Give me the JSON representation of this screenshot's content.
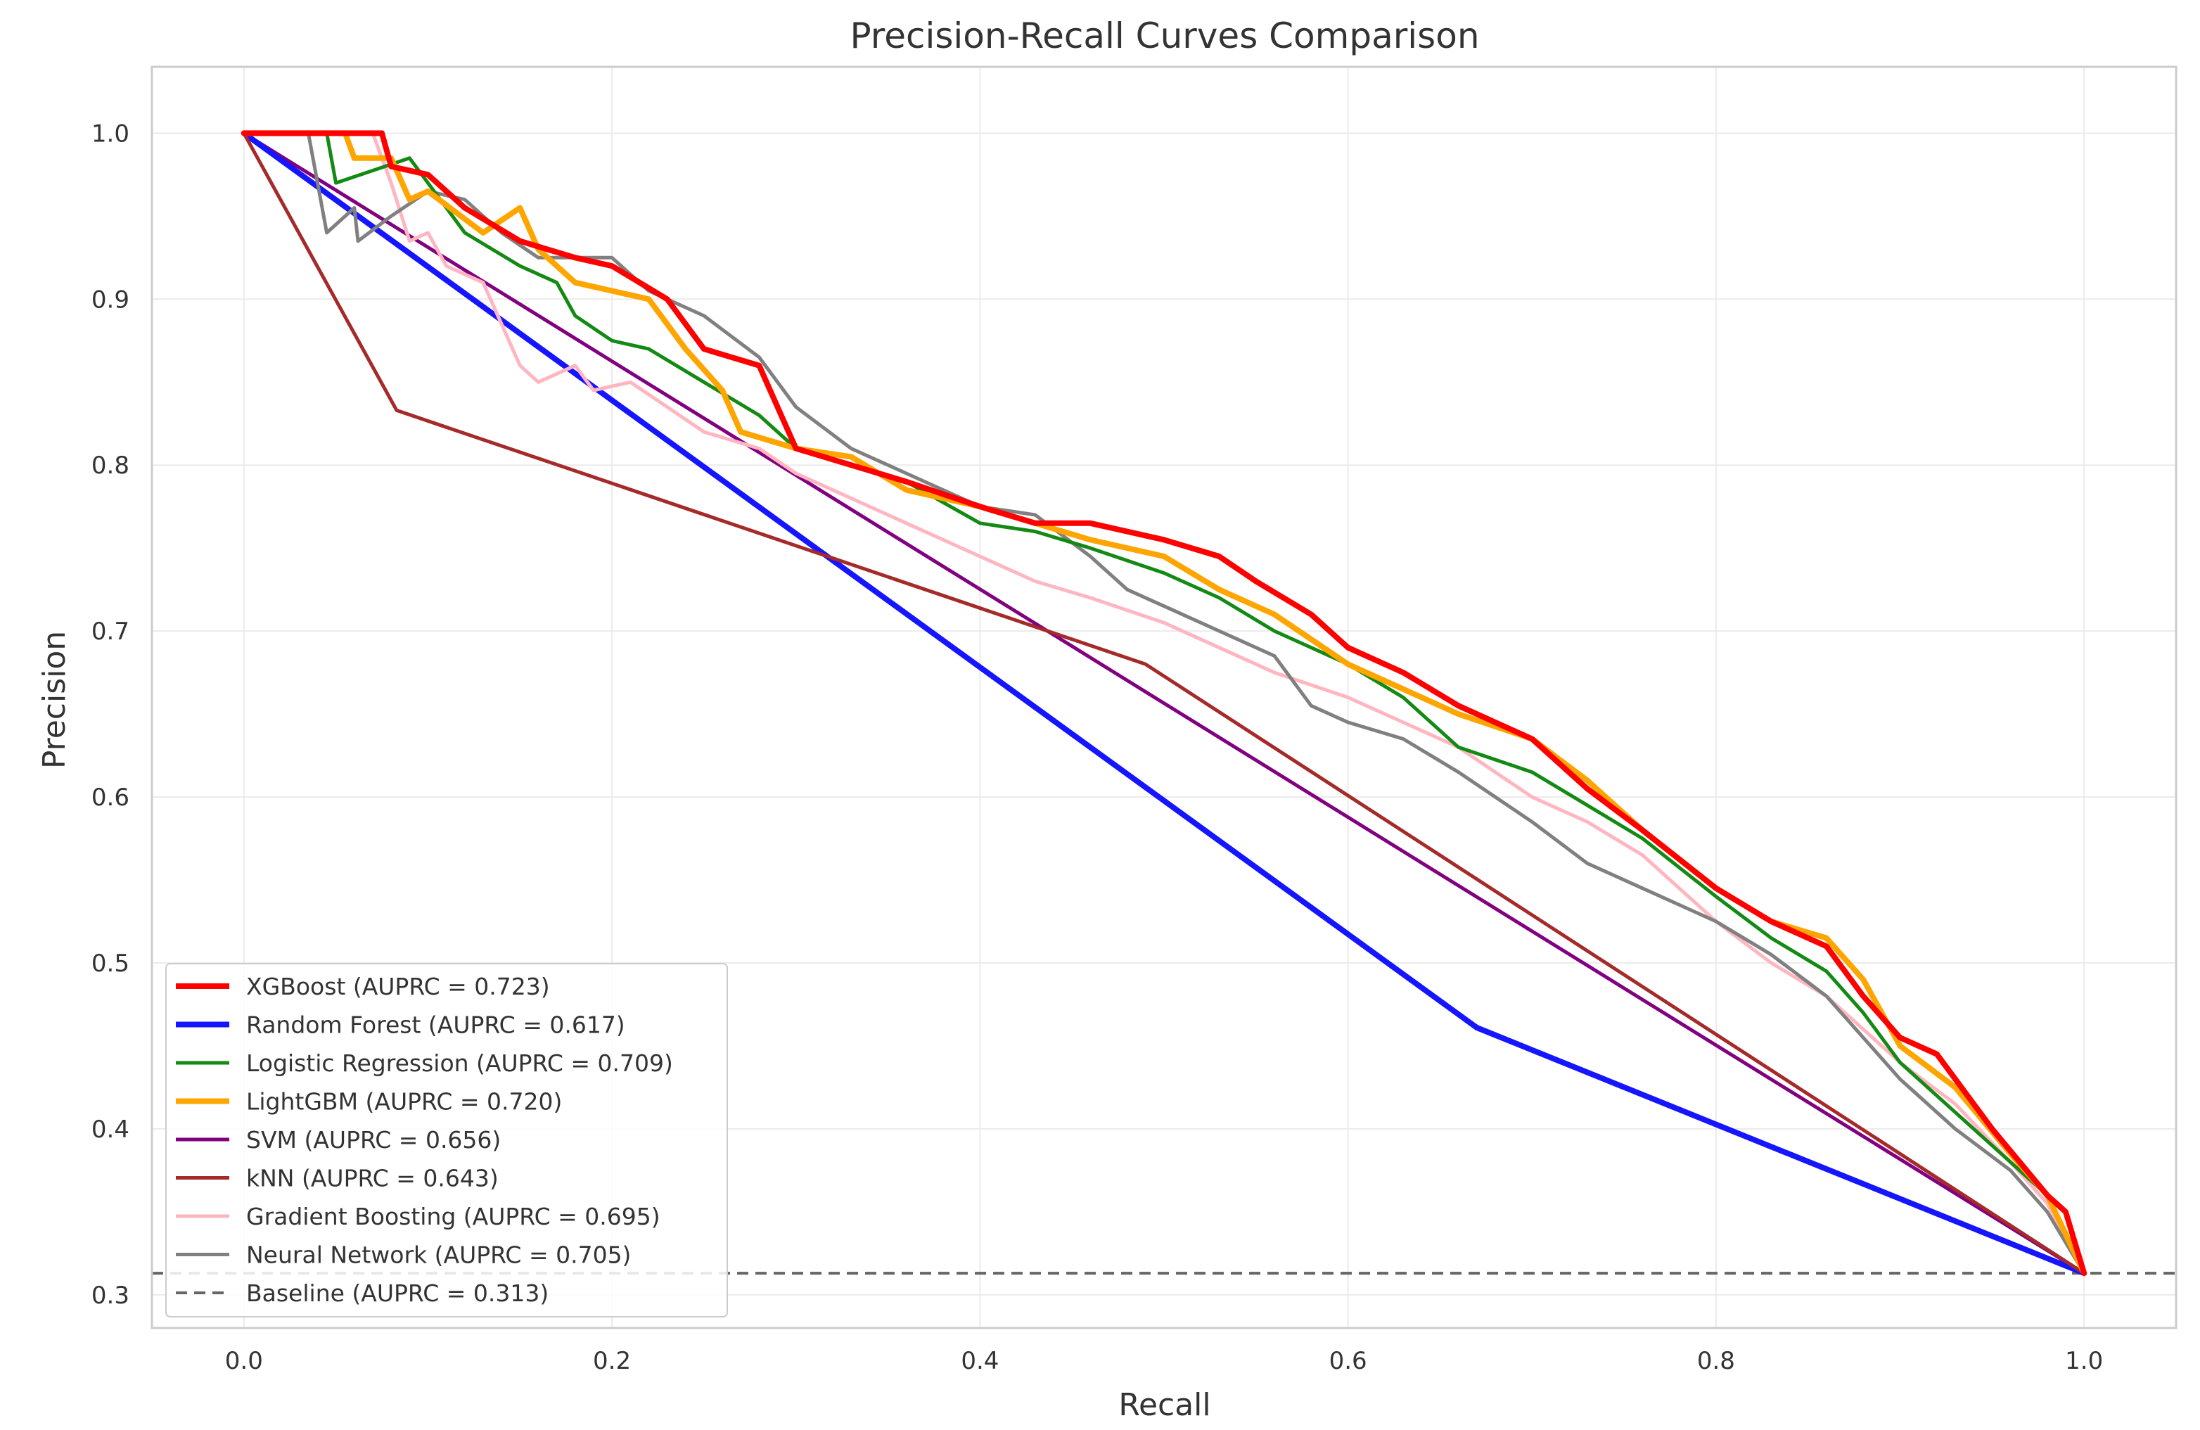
{
  "chart_data": {
    "type": "line",
    "title": "Precision-Recall Curves Comparison",
    "xlabel": "Recall",
    "ylabel": "Precision",
    "xlim": [
      -0.05,
      1.05
    ],
    "ylim": [
      0.28,
      1.04
    ],
    "xticks": [
      0.0,
      0.2,
      0.4,
      0.6,
      0.8,
      1.0
    ],
    "xtick_labels": [
      "0.0",
      "0.2",
      "0.4",
      "0.6",
      "0.8",
      "1.0"
    ],
    "yticks": [
      0.3,
      0.4,
      0.5,
      0.6,
      0.7,
      0.8,
      0.9,
      1.0
    ],
    "ytick_labels": [
      "0.3",
      "0.4",
      "0.5",
      "0.6",
      "0.7",
      "0.8",
      "0.9",
      "1.0"
    ],
    "grid": true,
    "legend_position": "lower-left",
    "series": [
      {
        "name": "XGBoost (AUPRC = 0.723)",
        "color": "#ff0000",
        "style": "solid",
        "weight": "heavy",
        "x": [
          0.0,
          0.075,
          0.08,
          0.1,
          0.12,
          0.15,
          0.18,
          0.2,
          0.23,
          0.25,
          0.28,
          0.3,
          0.33,
          0.36,
          0.4,
          0.43,
          0.46,
          0.48,
          0.5,
          0.53,
          0.55,
          0.58,
          0.6,
          0.63,
          0.66,
          0.7,
          0.73,
          0.76,
          0.8,
          0.83,
          0.86,
          0.88,
          0.9,
          0.92,
          0.95,
          0.98,
          0.99,
          1.0
        ],
        "y": [
          1.0,
          1.0,
          0.98,
          0.975,
          0.955,
          0.935,
          0.925,
          0.92,
          0.9,
          0.87,
          0.86,
          0.81,
          0.8,
          0.79,
          0.775,
          0.765,
          0.765,
          0.76,
          0.755,
          0.745,
          0.73,
          0.71,
          0.69,
          0.675,
          0.655,
          0.635,
          0.605,
          0.58,
          0.545,
          0.525,
          0.51,
          0.48,
          0.455,
          0.445,
          0.4,
          0.36,
          0.35,
          0.313
        ]
      },
      {
        "name": "Random Forest (AUPRC = 0.617)",
        "color": "#1515ff",
        "style": "solid",
        "weight": "heavy",
        "x": [
          0.0,
          0.67,
          1.0
        ],
        "y": [
          1.0,
          0.461,
          0.313
        ]
      },
      {
        "name": "Logistic Regression (AUPRC = 0.709)",
        "color": "#138a13",
        "style": "solid",
        "weight": "normal",
        "x": [
          0.0,
          0.045,
          0.05,
          0.09,
          0.1,
          0.12,
          0.15,
          0.17,
          0.18,
          0.2,
          0.22,
          0.25,
          0.28,
          0.3,
          0.33,
          0.36,
          0.4,
          0.43,
          0.46,
          0.5,
          0.53,
          0.56,
          0.6,
          0.63,
          0.66,
          0.7,
          0.73,
          0.76,
          0.8,
          0.83,
          0.86,
          0.88,
          0.9,
          0.93,
          0.96,
          0.98,
          1.0
        ],
        "y": [
          1.0,
          1.0,
          0.97,
          0.985,
          0.97,
          0.94,
          0.92,
          0.91,
          0.89,
          0.875,
          0.87,
          0.85,
          0.83,
          0.81,
          0.8,
          0.79,
          0.765,
          0.76,
          0.75,
          0.735,
          0.72,
          0.7,
          0.68,
          0.66,
          0.63,
          0.615,
          0.595,
          0.575,
          0.54,
          0.515,
          0.495,
          0.47,
          0.44,
          0.41,
          0.38,
          0.36,
          0.313
        ]
      },
      {
        "name": "LightGBM (AUPRC = 0.720)",
        "color": "#ffa500",
        "style": "solid",
        "weight": "heavy",
        "x": [
          0.0,
          0.055,
          0.06,
          0.08,
          0.09,
          0.1,
          0.13,
          0.15,
          0.16,
          0.18,
          0.2,
          0.22,
          0.24,
          0.26,
          0.27,
          0.3,
          0.33,
          0.36,
          0.4,
          0.43,
          0.46,
          0.5,
          0.53,
          0.56,
          0.6,
          0.63,
          0.66,
          0.7,
          0.73,
          0.76,
          0.8,
          0.83,
          0.86,
          0.88,
          0.9,
          0.93,
          0.96,
          0.98,
          1.0
        ],
        "y": [
          1.0,
          1.0,
          0.985,
          0.985,
          0.96,
          0.965,
          0.94,
          0.955,
          0.93,
          0.91,
          0.905,
          0.9,
          0.87,
          0.845,
          0.82,
          0.81,
          0.805,
          0.785,
          0.775,
          0.765,
          0.755,
          0.745,
          0.725,
          0.71,
          0.68,
          0.665,
          0.65,
          0.635,
          0.61,
          0.58,
          0.545,
          0.525,
          0.515,
          0.49,
          0.45,
          0.425,
          0.385,
          0.36,
          0.313
        ]
      },
      {
        "name": "SVM (AUPRC = 0.656)",
        "color": "#800080",
        "style": "solid",
        "weight": "normal",
        "x": [
          0.0,
          1.0
        ],
        "y": [
          1.0,
          0.313
        ]
      },
      {
        "name": "kNN (AUPRC = 0.643)",
        "color": "#a52a2a",
        "style": "solid",
        "weight": "normal",
        "x": [
          0.0,
          0.083,
          0.49,
          1.0
        ],
        "y": [
          1.0,
          0.833,
          0.68,
          0.313
        ]
      },
      {
        "name": "Gradient Boosting (AUPRC = 0.695)",
        "color": "#ffb6c1",
        "style": "solid",
        "weight": "normal",
        "x": [
          0.0,
          0.07,
          0.08,
          0.09,
          0.1,
          0.11,
          0.13,
          0.15,
          0.16,
          0.18,
          0.19,
          0.21,
          0.23,
          0.25,
          0.28,
          0.3,
          0.33,
          0.36,
          0.4,
          0.43,
          0.46,
          0.5,
          0.53,
          0.56,
          0.6,
          0.63,
          0.66,
          0.7,
          0.73,
          0.76,
          0.8,
          0.83,
          0.86,
          0.88,
          0.9,
          0.93,
          0.96,
          0.98,
          1.0
        ],
        "y": [
          1.0,
          1.0,
          0.97,
          0.935,
          0.94,
          0.92,
          0.91,
          0.86,
          0.85,
          0.86,
          0.845,
          0.85,
          0.835,
          0.82,
          0.81,
          0.795,
          0.78,
          0.765,
          0.745,
          0.73,
          0.72,
          0.705,
          0.69,
          0.675,
          0.66,
          0.645,
          0.63,
          0.6,
          0.585,
          0.565,
          0.525,
          0.5,
          0.48,
          0.46,
          0.44,
          0.415,
          0.38,
          0.355,
          0.313
        ]
      },
      {
        "name": "Neural Network (AUPRC = 0.705)",
        "color": "#808080",
        "style": "solid",
        "weight": "normal",
        "x": [
          0.0,
          0.035,
          0.04,
          0.045,
          0.06,
          0.062,
          0.08,
          0.1,
          0.12,
          0.14,
          0.16,
          0.2,
          0.22,
          0.25,
          0.28,
          0.3,
          0.33,
          0.36,
          0.4,
          0.43,
          0.46,
          0.48,
          0.5,
          0.53,
          0.56,
          0.58,
          0.6,
          0.63,
          0.66,
          0.7,
          0.73,
          0.76,
          0.8,
          0.83,
          0.86,
          0.88,
          0.9,
          0.93,
          0.96,
          0.98,
          1.0
        ],
        "y": [
          1.0,
          1.0,
          0.97,
          0.94,
          0.955,
          0.935,
          0.95,
          0.965,
          0.96,
          0.94,
          0.925,
          0.925,
          0.905,
          0.89,
          0.865,
          0.835,
          0.81,
          0.795,
          0.775,
          0.77,
          0.745,
          0.725,
          0.715,
          0.7,
          0.685,
          0.655,
          0.645,
          0.635,
          0.615,
          0.585,
          0.56,
          0.545,
          0.525,
          0.505,
          0.48,
          0.455,
          0.43,
          0.4,
          0.375,
          0.35,
          0.313
        ]
      },
      {
        "name": "Baseline (AUPRC = 0.313)",
        "color": "#666666",
        "style": "dashed",
        "weight": "normal",
        "x": [
          -0.05,
          1.05
        ],
        "y": [
          0.313,
          0.313
        ]
      }
    ]
  }
}
